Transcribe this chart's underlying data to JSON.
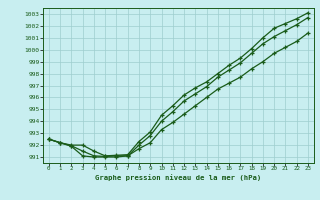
{
  "title": "Graphe pression niveau de la mer (hPa)",
  "background_color": "#c8eef0",
  "grid_color": "#9ecece",
  "line_color": "#1a5c1a",
  "x_ticks": [
    0,
    1,
    2,
    3,
    4,
    5,
    6,
    7,
    8,
    9,
    10,
    11,
    12,
    13,
    14,
    15,
    16,
    17,
    18,
    19,
    20,
    21,
    22,
    23
  ],
  "ylim": [
    990.5,
    1003.5
  ],
  "yticks": [
    991,
    992,
    993,
    994,
    995,
    996,
    997,
    998,
    999,
    1000,
    1001,
    1002,
    1003
  ],
  "line1": [
    992.5,
    992.2,
    992.0,
    992.0,
    991.5,
    991.1,
    991.15,
    991.2,
    992.3,
    993.1,
    994.5,
    995.3,
    996.2,
    996.8,
    997.3,
    998.0,
    998.7,
    999.3,
    1000.1,
    1001.0,
    1001.8,
    1002.2,
    1002.6,
    1003.1
  ],
  "line2": [
    992.5,
    992.2,
    991.95,
    991.5,
    991.1,
    991.05,
    991.1,
    991.1,
    992.0,
    992.8,
    994.0,
    994.8,
    995.7,
    996.3,
    996.9,
    997.7,
    998.3,
    998.9,
    999.7,
    1000.5,
    1001.1,
    1001.6,
    1002.1,
    1002.7
  ],
  "line3": [
    992.5,
    992.2,
    991.9,
    991.1,
    991.0,
    991.0,
    991.0,
    991.1,
    991.7,
    992.2,
    993.3,
    993.9,
    994.6,
    995.3,
    996.0,
    996.7,
    997.2,
    997.7,
    998.4,
    999.0,
    999.7,
    1000.2,
    1000.7,
    1001.4
  ]
}
